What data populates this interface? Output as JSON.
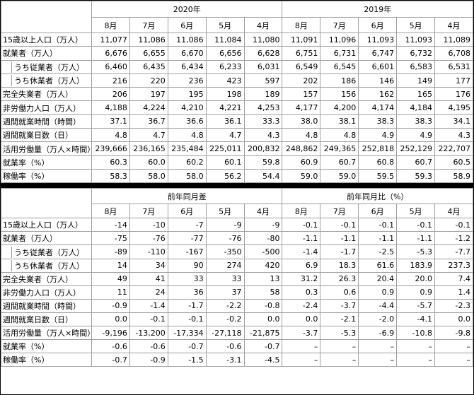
{
  "top": {
    "header": [
      "2020年",
      "2019年"
    ],
    "months": [
      "8月",
      "7月",
      "6月",
      "5月",
      "4月",
      "8月",
      "7月",
      "6月",
      "5月",
      "4月"
    ],
    "rows": [
      {
        "label": "15歳以上人口（万人）",
        "values": [
          "11,077",
          "11,086",
          "11,086",
          "11,084",
          "11,080",
          "11,091",
          "11,096",
          "11,093",
          "11,093",
          "11,089"
        ]
      },
      {
        "label": "就業者（万人）",
        "values": [
          "6,676",
          "6,655",
          "6,670",
          "6,656",
          "6,628",
          "6,751",
          "6,731",
          "6,747",
          "6,732",
          "6,708"
        ]
      },
      {
        "label": "うち従業者（万人）",
        "values": [
          "6,460",
          "6,435",
          "6,434",
          "6,233",
          "6,031",
          "6,549",
          "6,545",
          "6,601",
          "6,583",
          "6,531"
        ]
      },
      {
        "label": "うち休業者（万人）",
        "values": [
          "216",
          "220",
          "236",
          "423",
          "597",
          "202",
          "186",
          "146",
          "149",
          "177"
        ]
      },
      {
        "label": "完全失業者（万人）",
        "values": [
          "206",
          "197",
          "195",
          "198",
          "189",
          "157",
          "156",
          "162",
          "165",
          "176"
        ]
      },
      {
        "label": "非労働力人口（万人）",
        "values": [
          "4,188",
          "4,224",
          "4,210",
          "4,221",
          "4,253",
          "4,177",
          "4,200",
          "4,174",
          "4,184",
          "4,195"
        ]
      },
      {
        "label": "週間就業時間（時間）",
        "values": [
          "37.1",
          "36.7",
          "36.6",
          "36.1",
          "33.3",
          "38.0",
          "38.1",
          "38.3",
          "38.3",
          "34.1"
        ]
      },
      {
        "label": "週間就業日数（日）",
        "values": [
          "4.8",
          "4.7",
          "4.8",
          "4.7",
          "4.3",
          "4.8",
          "4.8",
          "4.9",
          "4.9",
          "4.3"
        ]
      },
      {
        "label": "活用労働量（万人×時間）",
        "values": [
          "239,666",
          "236,165",
          "235,484",
          "225,011",
          "200,832",
          "248,862",
          "249,365",
          "252,818",
          "252,129",
          "222,707"
        ]
      },
      {
        "label": "就業率（%）",
        "values": [
          "60.3",
          "60.0",
          "60.2",
          "60.1",
          "59.8",
          "60.9",
          "60.7",
          "60.8",
          "60.7",
          "60.5"
        ]
      },
      {
        "label": "稼働率（%）",
        "values": [
          "58.3",
          "58.0",
          "58.0",
          "56.2",
          "54.4",
          "59.0",
          "59.0",
          "59.5",
          "59.3",
          "58.9"
        ]
      }
    ]
  },
  "bottom": {
    "header": [
      "前年同月差",
      "前年同月比（%）"
    ],
    "months": [
      "8月",
      "7月",
      "6月",
      "5月",
      "4月",
      "8月",
      "7月",
      "6月",
      "5月",
      "4月"
    ],
    "rows": [
      {
        "label": "15歳以上人口（万人）",
        "values": [
          "-14",
          "-10",
          "-7",
          "-9",
          "-9",
          "-0.1",
          "-0.1",
          "-0.1",
          "-0.1",
          "-0.1"
        ]
      },
      {
        "label": "就業者（万人）",
        "values": [
          "-75",
          "-76",
          "-77",
          "-76",
          "-80",
          "-1.1",
          "-1.1",
          "-1.1",
          "-1.1",
          "-1.2"
        ]
      },
      {
        "label": "うち従業者（万人）",
        "values": [
          "-89",
          "-110",
          "-167",
          "-350",
          "-500",
          "-1.4",
          "-1.7",
          "-2.5",
          "-5.3",
          "-7.7"
        ]
      },
      {
        "label": "うち休業者（万人）",
        "values": [
          "14",
          "34",
          "90",
          "274",
          "420",
          "6.9",
          "18.3",
          "61.6",
          "183.9",
          "237.3"
        ]
      },
      {
        "label": "完全失業者（万人）",
        "values": [
          "49",
          "41",
          "33",
          "33",
          "13",
          "31.2",
          "26.3",
          "20.4",
          "20.0",
          "7.4"
        ]
      },
      {
        "label": "非労働力人口（万人）",
        "values": [
          "11",
          "24",
          "36",
          "37",
          "58",
          "0.3",
          "0.6",
          "0.9",
          "0.9",
          "1.4"
        ]
      },
      {
        "label": "週間就業時間（時間）",
        "values": [
          "-0.9",
          "-1.4",
          "-1.7",
          "-2.2",
          "-0.8",
          "-2.4",
          "-3.7",
          "-4.4",
          "-5.7",
          "-2.3"
        ]
      },
      {
        "label": "週間就業日数（日）",
        "values": [
          "0.0",
          "-0.1",
          "-0.1",
          "-0.2",
          "0.0",
          "0.0",
          "-2.1",
          "-2.0",
          "-4.1",
          "0.0"
        ]
      },
      {
        "label": "活用労働量（万人×時間）",
        "values": [
          "-9,196",
          "-13,200",
          "-17,334",
          "-27,118",
          "-21,875",
          "-3.7",
          "-5.3",
          "-6.9",
          "-10.8",
          "-9.8"
        ]
      },
      {
        "label": "就業率（%）",
        "values": [
          "-0.6",
          "-0.6",
          "-0.7",
          "-0.6",
          "-0.7",
          "–",
          "–",
          "–",
          "–",
          "–"
        ]
      },
      {
        "label": "稼働率（%）",
        "values": [
          "-0.7",
          "-0.9",
          "-1.5",
          "-3.1",
          "-4.5",
          "–",
          "–",
          "–",
          "–",
          "–"
        ]
      }
    ]
  }
}
